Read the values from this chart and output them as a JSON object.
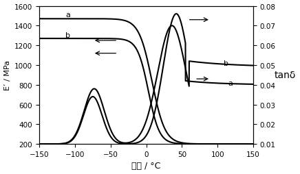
{
  "xlabel": "温度 / °C",
  "ylabel_left": "E’ / MPa",
  "ylabel_right": "tanδ",
  "xlim": [
    -150,
    150
  ],
  "ylim_left": [
    200,
    1600
  ],
  "ylim_right": [
    0.01,
    0.08
  ],
  "yticks_left": [
    200,
    400,
    600,
    800,
    1000,
    1200,
    1400,
    1600
  ],
  "yticks_right": [
    0.01,
    0.02,
    0.03,
    0.04,
    0.05,
    0.06,
    0.07,
    0.08
  ],
  "xticks": [
    -150,
    -100,
    -50,
    0,
    50,
    100,
    150
  ],
  "bg_color": "white",
  "lw": 1.5
}
